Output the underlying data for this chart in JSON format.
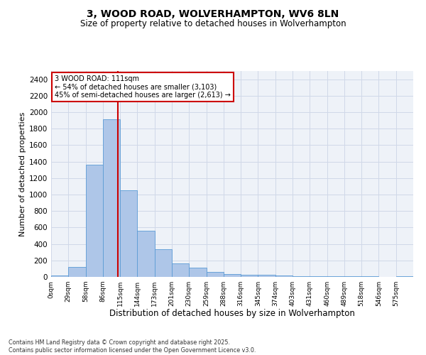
{
  "title": "3, WOOD ROAD, WOLVERHAMPTON, WV6 8LN",
  "subtitle": "Size of property relative to detached houses in Wolverhampton",
  "xlabel": "Distribution of detached houses by size in Wolverhampton",
  "ylabel": "Number of detached properties",
  "footer_line1": "Contains HM Land Registry data © Crown copyright and database right 2025.",
  "footer_line2": "Contains public sector information licensed under the Open Government Licence v3.0.",
  "bin_labels": [
    "0sqm",
    "29sqm",
    "58sqm",
    "86sqm",
    "115sqm",
    "144sqm",
    "173sqm",
    "201sqm",
    "230sqm",
    "259sqm",
    "288sqm",
    "316sqm",
    "345sqm",
    "374sqm",
    "403sqm",
    "431sqm",
    "460sqm",
    "489sqm",
    "518sqm",
    "546sqm",
    "575sqm"
  ],
  "bar_values": [
    15,
    125,
    1360,
    1910,
    1055,
    560,
    335,
    165,
    110,
    60,
    35,
    30,
    25,
    20,
    5,
    5,
    5,
    5,
    5,
    0,
    10
  ],
  "bar_color": "#aec6e8",
  "bar_edge_color": "#5b9bd5",
  "grid_color": "#d0d8e8",
  "background_color": "#eef2f8",
  "vline_color": "#cc0000",
  "annotation_text": "3 WOOD ROAD: 111sqm\n← 54% of detached houses are smaller (3,103)\n45% of semi-detached houses are larger (2,613) →",
  "annotation_box_color": "#ffffff",
  "annotation_edge_color": "#cc0000",
  "ylim": [
    0,
    2500
  ],
  "yticks": [
    0,
    200,
    400,
    600,
    800,
    1000,
    1200,
    1400,
    1600,
    1800,
    2000,
    2200,
    2400
  ],
  "title_fontsize": 10,
  "subtitle_fontsize": 8.5,
  "ylabel_fontsize": 8,
  "xlabel_fontsize": 8.5
}
